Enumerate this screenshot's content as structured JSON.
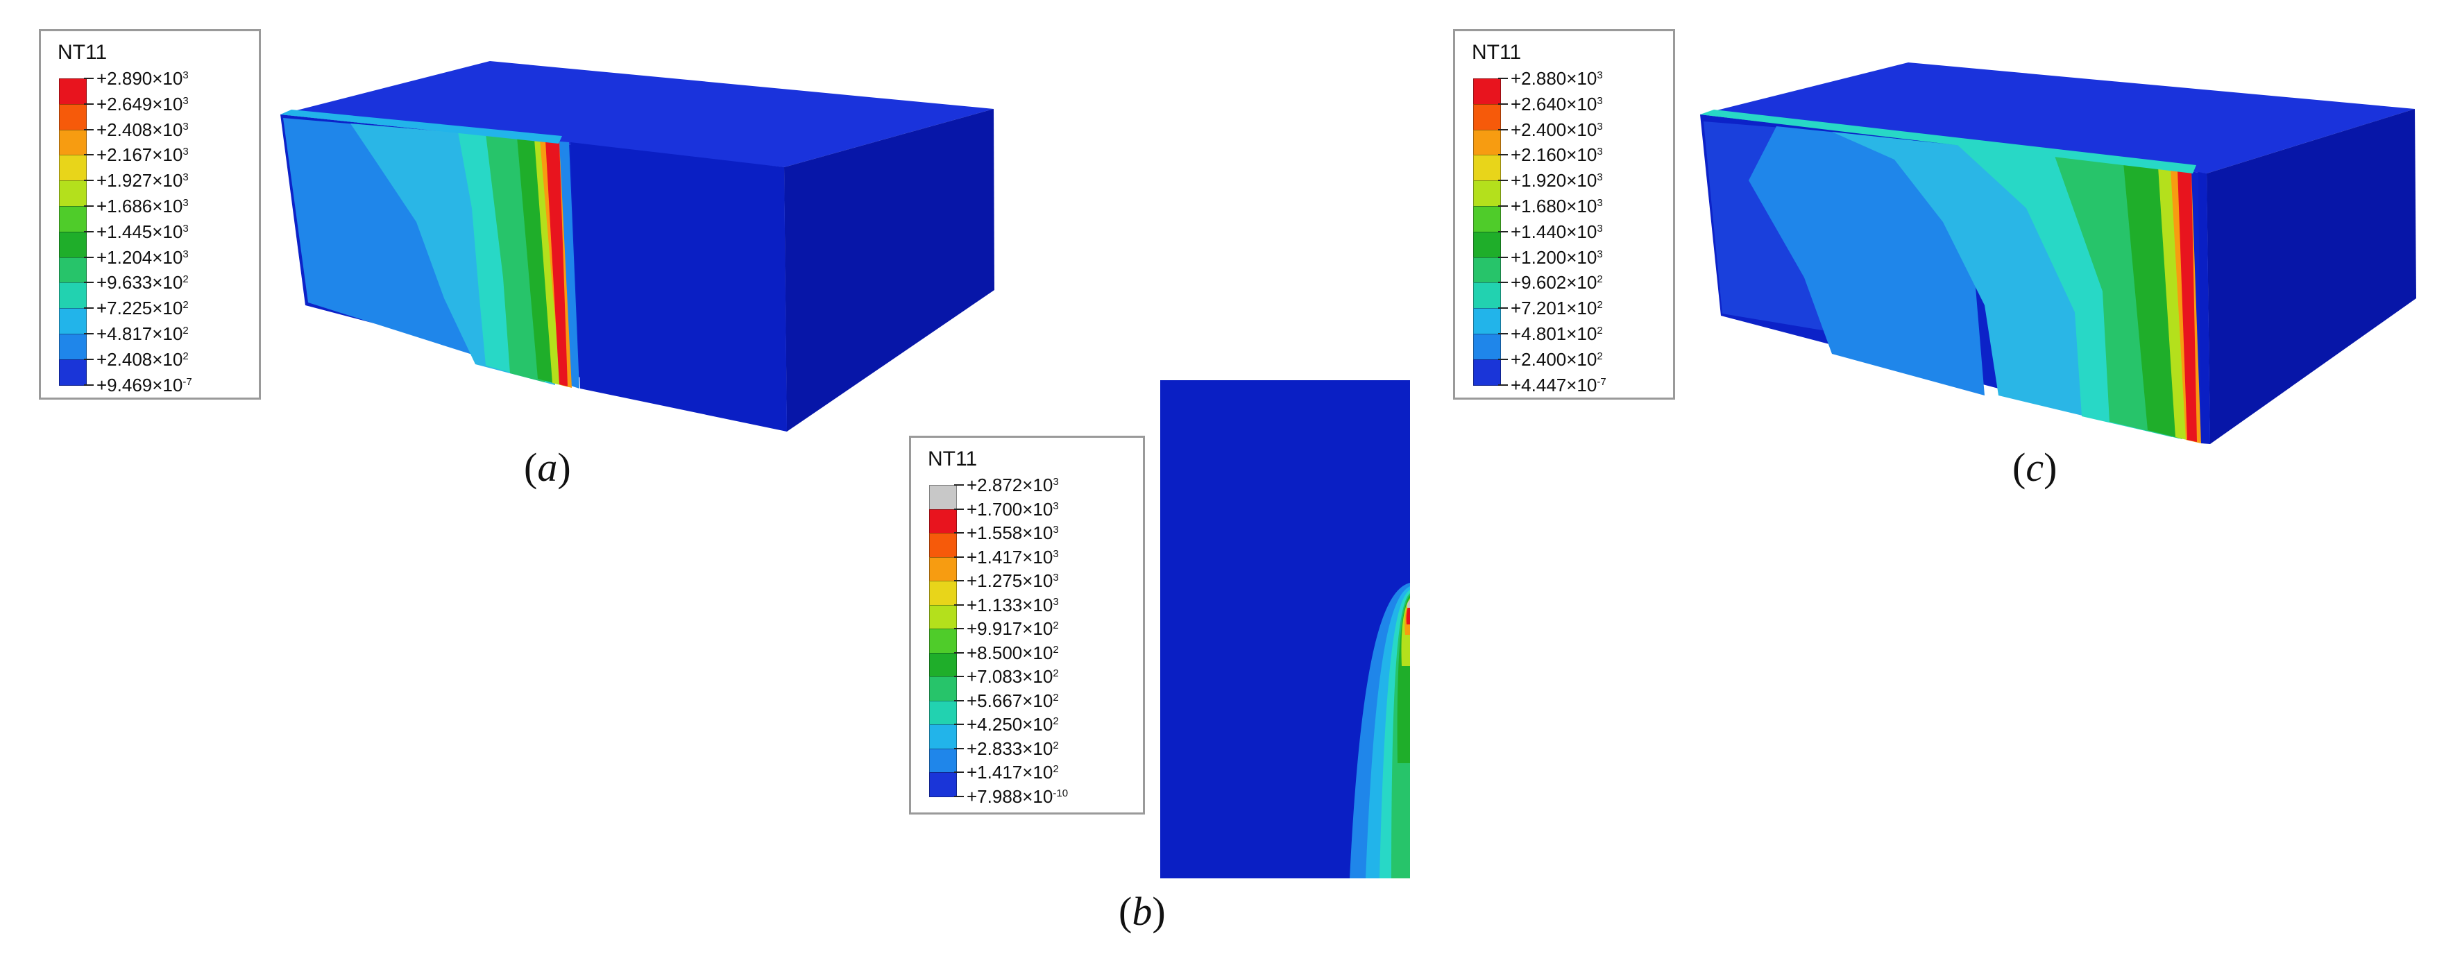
{
  "panels": [
    {
      "id": "a",
      "caption": "a",
      "legend": {
        "title": "NT11",
        "entries": [
          {
            "mantissa": "+2.890",
            "exp": "3"
          },
          {
            "mantissa": "+2.649",
            "exp": "3"
          },
          {
            "mantissa": "+2.408",
            "exp": "3"
          },
          {
            "mantissa": "+2.167",
            "exp": "3"
          },
          {
            "mantissa": "+1.927",
            "exp": "3"
          },
          {
            "mantissa": "+1.686",
            "exp": "3"
          },
          {
            "mantissa": "+1.445",
            "exp": "3"
          },
          {
            "mantissa": "+1.204",
            "exp": "3"
          },
          {
            "mantissa": "+9.633",
            "exp": "2"
          },
          {
            "mantissa": "+7.225",
            "exp": "2"
          },
          {
            "mantissa": "+4.817",
            "exp": "2"
          },
          {
            "mantissa": "+2.408",
            "exp": "2"
          },
          {
            "mantissa": "+9.469",
            "exp": "-7"
          }
        ],
        "colors": [
          "#e8141e",
          "#f65a0a",
          "#f79c11",
          "#e8d51a",
          "#b4e01c",
          "#4fcc2a",
          "#1fae2a",
          "#27c46a",
          "#22d2b0",
          "#22b4ea",
          "#1f86ea",
          "#1a35d8"
        ]
      }
    },
    {
      "id": "b",
      "caption": "b",
      "legend": {
        "title": "NT11",
        "entries": [
          {
            "mantissa": "+2.872",
            "exp": "3"
          },
          {
            "mantissa": "+1.700",
            "exp": "3"
          },
          {
            "mantissa": "+1.558",
            "exp": "3"
          },
          {
            "mantissa": "+1.417",
            "exp": "3"
          },
          {
            "mantissa": "+1.275",
            "exp": "3"
          },
          {
            "mantissa": "+1.133",
            "exp": "3"
          },
          {
            "mantissa": "+9.917",
            "exp": "2"
          },
          {
            "mantissa": "+8.500",
            "exp": "2"
          },
          {
            "mantissa": "+7.083",
            "exp": "2"
          },
          {
            "mantissa": "+5.667",
            "exp": "2"
          },
          {
            "mantissa": "+4.250",
            "exp": "2"
          },
          {
            "mantissa": "+2.833",
            "exp": "2"
          },
          {
            "mantissa": "+1.417",
            "exp": "2"
          },
          {
            "mantissa": "+7.988",
            "exp": "-10"
          }
        ],
        "colors": [
          "#c8c8c8",
          "#e8141e",
          "#f65a0a",
          "#f79c11",
          "#e8d51a",
          "#b4e01c",
          "#4fcc2a",
          "#1fae2a",
          "#27c46a",
          "#22d2b0",
          "#22b4ea",
          "#1f86ea",
          "#1a35d8"
        ]
      }
    },
    {
      "id": "c",
      "caption": "c",
      "legend": {
        "title": "NT11",
        "entries": [
          {
            "mantissa": "+2.880",
            "exp": "3"
          },
          {
            "mantissa": "+2.640",
            "exp": "3"
          },
          {
            "mantissa": "+2.400",
            "exp": "3"
          },
          {
            "mantissa": "+2.160",
            "exp": "3"
          },
          {
            "mantissa": "+1.920",
            "exp": "3"
          },
          {
            "mantissa": "+1.680",
            "exp": "3"
          },
          {
            "mantissa": "+1.440",
            "exp": "3"
          },
          {
            "mantissa": "+1.200",
            "exp": "3"
          },
          {
            "mantissa": "+9.602",
            "exp": "2"
          },
          {
            "mantissa": "+7.201",
            "exp": "2"
          },
          {
            "mantissa": "+4.801",
            "exp": "2"
          },
          {
            "mantissa": "+2.400",
            "exp": "2"
          },
          {
            "mantissa": "+4.447",
            "exp": "-7"
          }
        ],
        "colors": [
          "#e8141e",
          "#f65a0a",
          "#f79c11",
          "#e8d51a",
          "#b4e01c",
          "#4fcc2a",
          "#1fae2a",
          "#27c46a",
          "#22d2b0",
          "#22b4ea",
          "#1f86ea",
          "#1a35d8"
        ]
      }
    }
  ],
  "model_colors": {
    "background_blue": "#0a1fc4",
    "top_face": "#1a33dc",
    "side_face": "#0716a8",
    "band_lightblue": "#2ab6e6",
    "band_cyan": "#28d8c6",
    "band_teal": "#27c46a",
    "band_green": "#1fae2a",
    "band_yellow": "#e8d51a",
    "band_orange": "#f79c11",
    "band_red": "#e8141e"
  }
}
